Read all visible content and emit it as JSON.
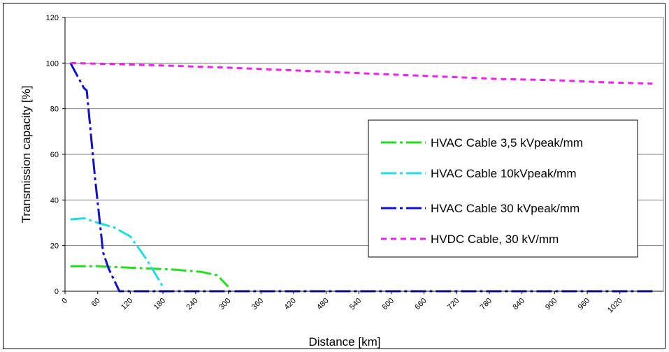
{
  "chart_data": {
    "type": "line",
    "xlabel": "Distance [km]",
    "ylabel": "Transmission capacity [%]",
    "xlim": [
      0,
      1100
    ],
    "ylim": [
      0,
      120
    ],
    "yticks": [
      0,
      20,
      40,
      60,
      80,
      100,
      120
    ],
    "xticks": [
      0,
      60,
      120,
      180,
      240,
      300,
      360,
      420,
      480,
      540,
      600,
      660,
      720,
      780,
      840,
      900,
      960,
      1020
    ],
    "grid": "horizontal",
    "legend_position": "center-right",
    "series": [
      {
        "name": "HVAC Cable 3,5 kVpeak/mm",
        "color": "#22dd22",
        "dash": "long-dash-dot",
        "x": [
          10,
          30,
          60,
          100,
          150,
          200,
          250,
          280,
          300
        ],
        "y": [
          11,
          11,
          11,
          10.5,
          10,
          9.5,
          8.5,
          7,
          2
        ]
      },
      {
        "name": "HVAC Cable 10kVpeak/mm",
        "color": "#22dddd",
        "dash": "long-dash-dot",
        "x": [
          10,
          35,
          60,
          90,
          120,
          150,
          180
        ],
        "y": [
          31.5,
          32,
          30,
          28,
          24,
          14,
          2
        ]
      },
      {
        "name": "HVAC Cable 30 kVpeak/mm",
        "color": "#1010d0",
        "dash": "long-dash-dot",
        "x": [
          10,
          35,
          40,
          55,
          70,
          80,
          100,
          200,
          400,
          600,
          800,
          1000,
          1080
        ],
        "y": [
          100,
          89,
          88,
          50,
          17,
          10,
          0,
          0,
          0,
          0,
          0,
          0,
          0
        ]
      },
      {
        "name": "HVDC Cable, 30 kV/mm",
        "color": "#ee22ee",
        "dash": "short-dash",
        "x": [
          10,
          100,
          200,
          300,
          400,
          500,
          600,
          700,
          800,
          900,
          1000,
          1080
        ],
        "y": [
          100,
          99.5,
          98.8,
          98,
          97,
          96,
          95,
          94,
          93,
          92.5,
          91.5,
          91
        ]
      }
    ]
  }
}
